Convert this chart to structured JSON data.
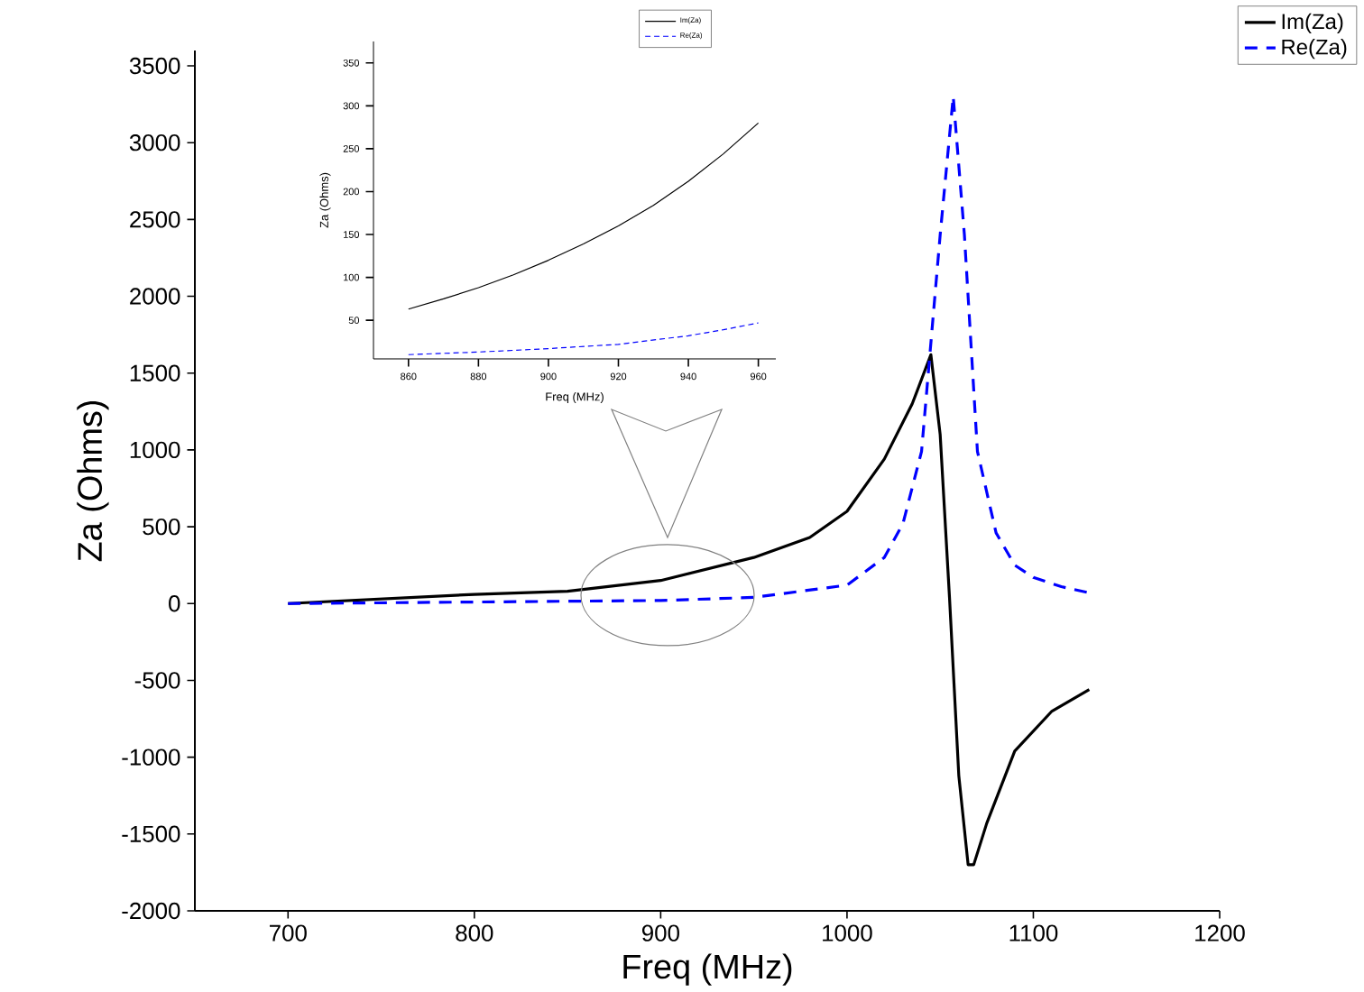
{
  "chart_data": [
    {
      "type": "line",
      "xlabel": "Freq (MHz)",
      "ylabel": "Za (Ohms)",
      "legend": "top right",
      "xlim": [
        650,
        1200
      ],
      "xticks": [
        700,
        800,
        900,
        1000,
        1100,
        1200
      ],
      "ylim": [
        -2000,
        3600
      ],
      "yticks": [
        -2000,
        -1500,
        -1000,
        -500,
        0,
        500,
        1000,
        1500,
        2000,
        2500,
        3000,
        3500
      ],
      "series": [
        {
          "name": "Im(Za)",
          "color": "#000000",
          "line_style": "solid",
          "x": [
            700,
            750,
            800,
            850,
            900,
            950,
            980,
            1000,
            1020,
            1035,
            1045,
            1050,
            1055,
            1060,
            1065,
            1068,
            1075,
            1090,
            1110,
            1130
          ],
          "values": [
            0,
            30,
            60,
            80,
            150,
            300,
            430,
            600,
            940,
            1300,
            1620,
            1100,
            40,
            -1120,
            -1700,
            -1700,
            -1430,
            -960,
            -700,
            -560
          ]
        },
        {
          "name": "Re(Za)",
          "color": "#0000ff",
          "line_style": "dashed",
          "x": [
            700,
            800,
            900,
            950,
            1000,
            1020,
            1030,
            1040,
            1050,
            1057,
            1063,
            1070,
            1080,
            1090,
            1100,
            1115,
            1130
          ],
          "values": [
            0,
            10,
            20,
            40,
            120,
            300,
            520,
            990,
            2400,
            3300,
            2400,
            990,
            460,
            250,
            170,
            110,
            70
          ]
        }
      ]
    },
    {
      "type": "line",
      "xlabel": "Freq (MHz)",
      "ylabel": "Za (Ohms)",
      "legend": "top",
      "xlim": [
        850,
        965
      ],
      "xticks": [
        860,
        880,
        900,
        920,
        940,
        960
      ],
      "ylim": [
        5,
        375
      ],
      "yticks": [
        50,
        100,
        150,
        200,
        250,
        300,
        350
      ],
      "series": [
        {
          "name": "Im(Za)",
          "color": "#000000",
          "line_style": "solid",
          "x": [
            860,
            870,
            880,
            890,
            900,
            910,
            920,
            930,
            940,
            950,
            960
          ],
          "values": [
            63,
            75,
            88,
            103,
            120,
            139,
            160,
            184,
            212,
            244,
            280
          ]
        },
        {
          "name": "Re(Za)",
          "color": "#0000ff",
          "line_style": "dashed",
          "x": [
            860,
            880,
            900,
            920,
            940,
            950,
            960
          ],
          "values": [
            10,
            13,
            17,
            22,
            32,
            39,
            47
          ]
        }
      ]
    }
  ]
}
